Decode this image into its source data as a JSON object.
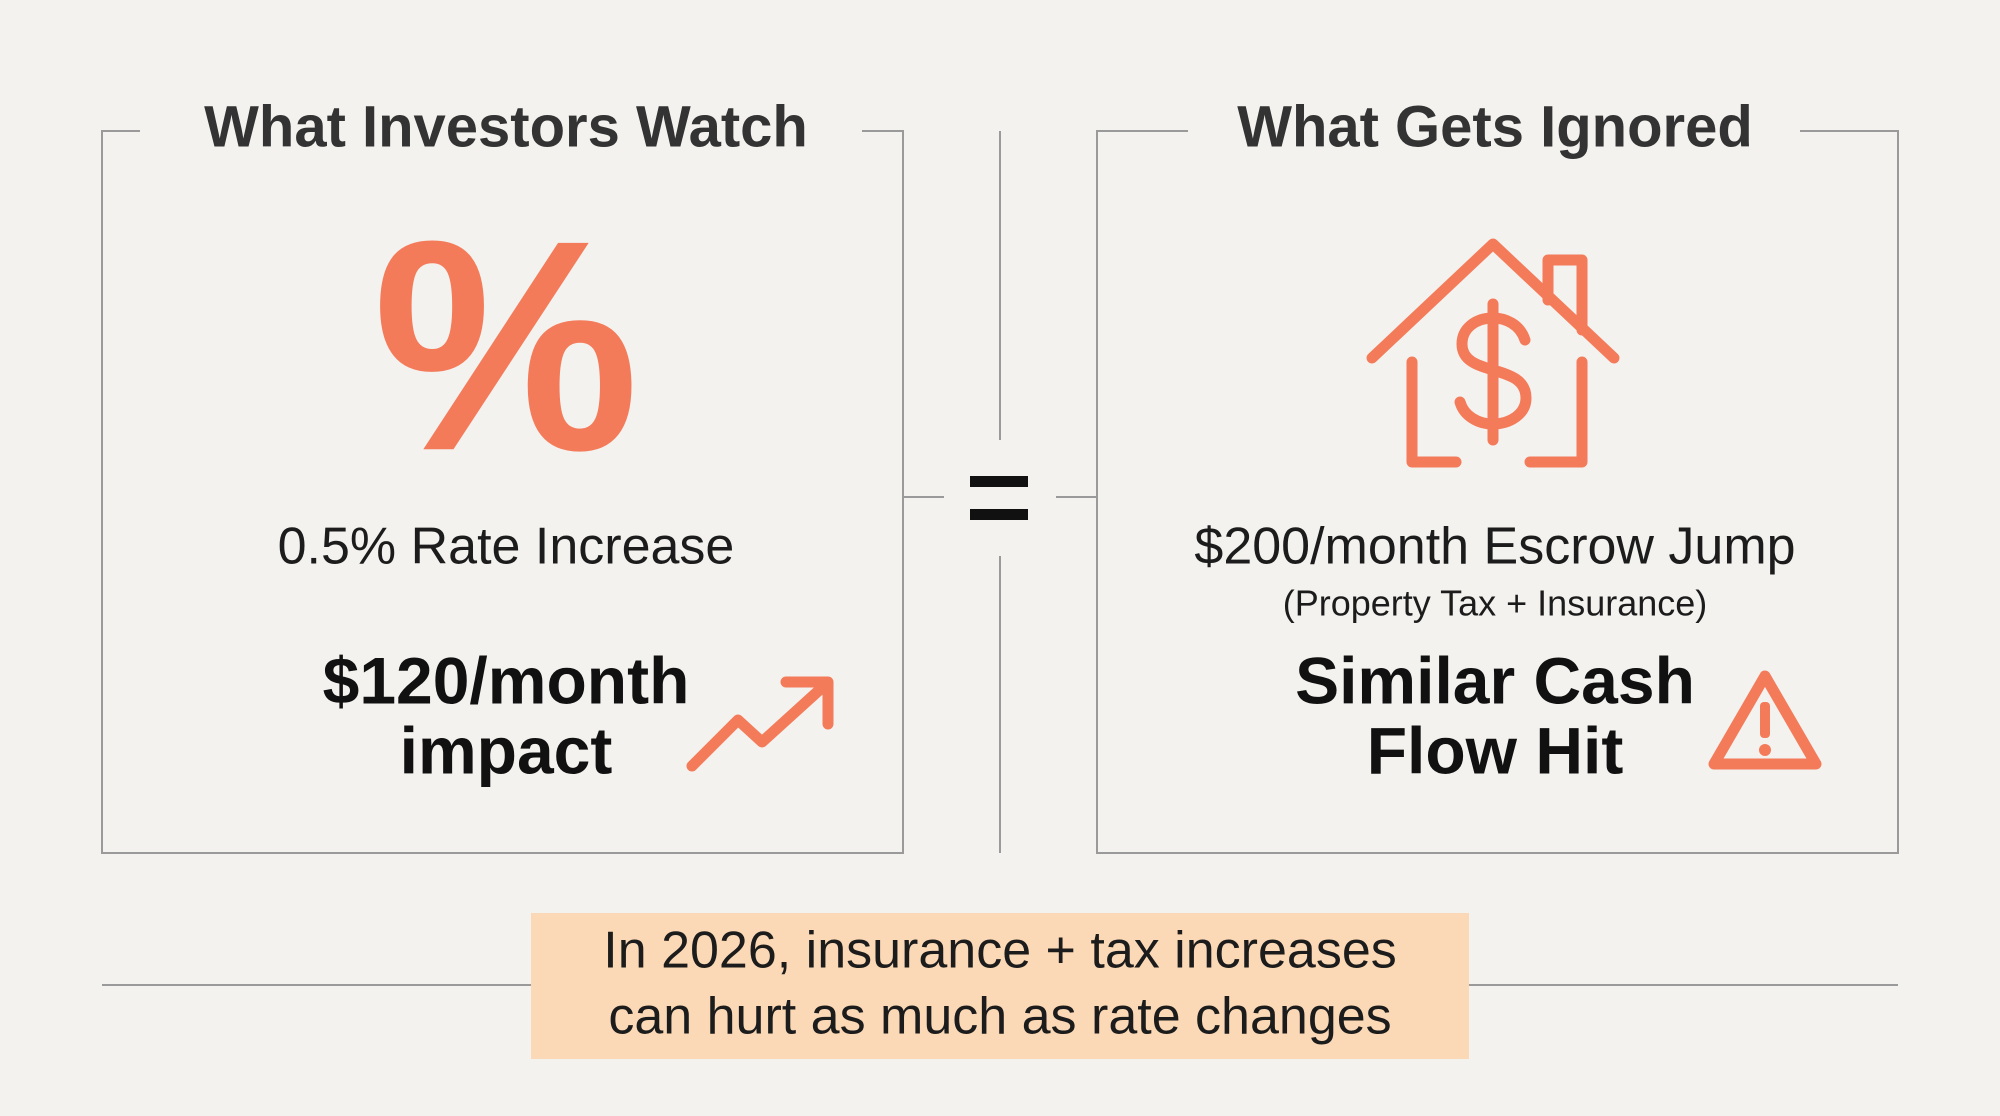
{
  "left": {
    "title": "What Investors Watch",
    "icon": "%",
    "label": "0.5% Rate Increase",
    "impact": [
      "$120/month",
      "impact"
    ]
  },
  "right": {
    "title": "What Gets Ignored",
    "label": "$200/month Escrow Jump",
    "sublabel": "(Property Tax + Insurance)",
    "impact": [
      "Similar Cash",
      "Flow Hit"
    ]
  },
  "footer": {
    "lines": [
      "In 2026, insurance + tax increases",
      "can hurt as much as rate changes"
    ]
  }
}
